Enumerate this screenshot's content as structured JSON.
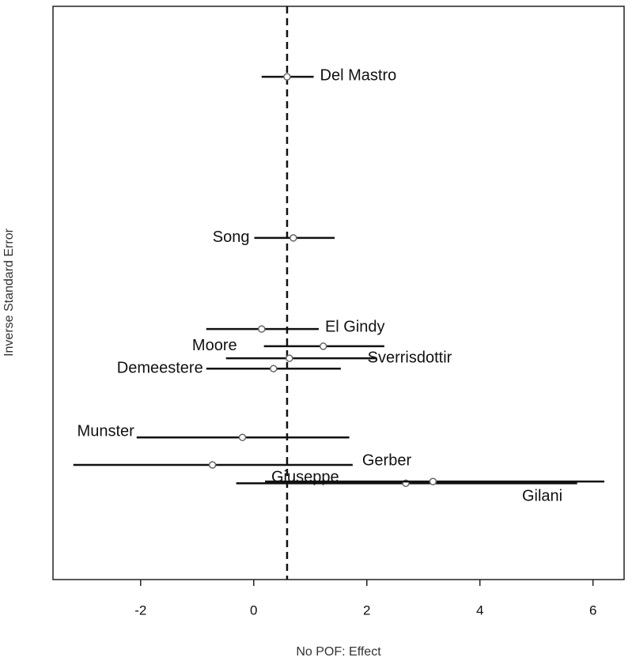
{
  "chart_data": {
    "type": "scatter",
    "x_label": "No POF: Effect",
    "y_label": "Inverse Standard Error",
    "xlim": [
      -3.55,
      6.55
    ],
    "ylim": [
      0,
      100
    ],
    "xticks": [
      -2,
      0,
      2,
      4,
      6
    ],
    "reference_x": 0.59,
    "points": [
      {
        "name": "Del Mastro",
        "x": 0.59,
        "lo": 0.14,
        "hi": 1.06,
        "y": 87.7
      },
      {
        "name": "Song",
        "x": 0.7,
        "lo": 0.01,
        "hi": 1.43,
        "y": 59.6
      },
      {
        "name": "El Gindy",
        "x": 0.14,
        "lo": -0.84,
        "hi": 1.15,
        "y": 43.7
      },
      {
        "name": "Moore",
        "x": 1.23,
        "lo": 0.18,
        "hi": 2.31,
        "y": 40.7
      },
      {
        "name": "Sverrisdottir",
        "x": 0.63,
        "lo": -0.49,
        "hi": 2.18,
        "y": 38.6
      },
      {
        "name": "Demeestere",
        "x": 0.35,
        "lo": -0.84,
        "hi": 1.54,
        "y": 36.8
      },
      {
        "name": "Munster",
        "x": -0.2,
        "lo": -2.07,
        "hi": 1.69,
        "y": 24.8
      },
      {
        "name": "Gerber",
        "x": -0.73,
        "lo": -3.19,
        "hi": 1.75,
        "y": 20.0
      },
      {
        "name": "Giuseppe",
        "x": 2.69,
        "lo": -0.31,
        "hi": 5.72,
        "y": 16.8
      },
      {
        "name": "Gilani",
        "x": 3.17,
        "lo": 0.2,
        "hi": 6.2,
        "y": 17.1
      }
    ]
  }
}
